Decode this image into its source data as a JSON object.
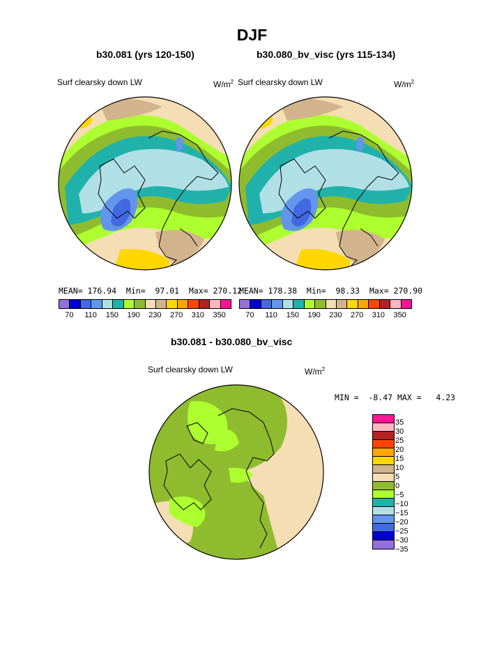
{
  "title": "DJF",
  "panels": [
    {
      "name": "b30.081 (yrs 120-150)",
      "variable": "Surf clearsky down LW",
      "units_base": "W/m",
      "units_exp": "2",
      "stats": "MEAN= 176.94  Min=  97.01  Max= 270.12"
    },
    {
      "name": "b30.080_bv_visc (yrs 115-134)",
      "variable": "Surf clearsky down LW",
      "units_base": "W/m",
      "units_exp": "2",
      "stats": "MEAN= 178.38  Min=  98.33  Max= 270.90"
    }
  ],
  "colorbar": {
    "colors": [
      "#9370db",
      "#0000cd",
      "#4169e1",
      "#6495ed",
      "#b0e0e6",
      "#20b2aa",
      "#adff2f",
      "#8fbc2f",
      "#f5deb3",
      "#d2b48c",
      "#ffd700",
      "#ffa500",
      "#ff4500",
      "#b22222",
      "#ffb6c1",
      "#ff1493"
    ],
    "labels": [
      "70",
      "110",
      "150",
      "190",
      "230",
      "270",
      "310",
      "350"
    ]
  },
  "diff": {
    "title": "b30.081 - b30.080_bv_visc",
    "variable": "Surf clearsky down LW",
    "units_base": "W/m",
    "units_exp": "2",
    "stats": "MIN =  -8.47 MAX =   4.23",
    "colors": [
      "#ff1493",
      "#ffb6c1",
      "#b22222",
      "#ff4500",
      "#ffa500",
      "#ffd700",
      "#d2b48c",
      "#f5deb3",
      "#8fbc2f",
      "#adff2f",
      "#20b2aa",
      "#b0e0e6",
      "#6495ed",
      "#4169e1",
      "#0000cd",
      "#9370db"
    ],
    "labels": [
      "35",
      "30",
      "25",
      "20",
      "15",
      "10",
      "5",
      "0",
      "−5",
      "−10",
      "−15",
      "−20",
      "−25",
      "−30",
      "−35"
    ]
  }
}
